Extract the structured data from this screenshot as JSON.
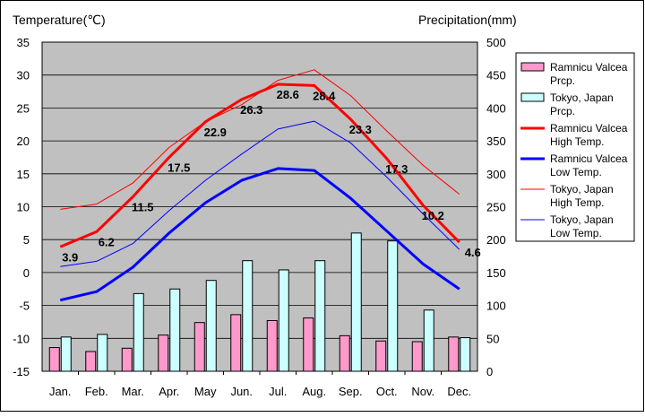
{
  "chart_data": {
    "type": "bar+line",
    "categories": [
      "Jan.",
      "Feb.",
      "Mar.",
      "Apr.",
      "May",
      "Jun.",
      "Jul.",
      "Aug.",
      "Sep.",
      "Oct.",
      "Nov.",
      "Dec."
    ],
    "left_axis": {
      "title": "Temperature(℃)",
      "min": -15,
      "max": 35,
      "step": 5
    },
    "right_axis": {
      "title": "Precipitation(mm)",
      "min": 0,
      "max": 500,
      "step": 50
    },
    "precipitation_series": [
      {
        "name": "Ramnicu Valcea Prcp.",
        "color": "#ff99cc",
        "values": [
          36,
          30,
          35,
          55,
          74,
          86,
          77,
          81,
          54,
          46,
          45,
          52
        ]
      },
      {
        "name": "Tokyo, Japan Prcp.",
        "color": "#ccffff",
        "values": [
          52,
          56,
          118,
          125,
          138,
          168,
          154,
          168,
          210,
          198,
          93,
          51
        ]
      }
    ],
    "temperature_series": [
      {
        "name": "Ramnicu Valcea High Temp.",
        "color": "#ff0000",
        "width": "thick",
        "values": [
          3.9,
          6.2,
          11.5,
          17.5,
          22.9,
          26.3,
          28.6,
          28.4,
          23.3,
          17.3,
          10.2,
          4.6
        ],
        "labels": [
          "3.9",
          "6.2",
          "11.5",
          "17.5",
          "22.9",
          "26.3",
          "28.6",
          "28.4",
          "23.3",
          "17.3",
          "10.2",
          "4.6"
        ]
      },
      {
        "name": "Ramnicu Valcea Low Temp.",
        "color": "#0000ff",
        "width": "thick",
        "values": [
          -4.2,
          -2.9,
          0.8,
          6.0,
          10.6,
          14.0,
          15.8,
          15.5,
          11.3,
          6.3,
          1.3,
          -2.5
        ]
      },
      {
        "name": "Tokyo, Japan High Temp.",
        "color": "#ff0000",
        "width": "thin",
        "values": [
          9.6,
          10.4,
          13.6,
          19.0,
          22.9,
          25.5,
          29.2,
          30.8,
          26.9,
          21.5,
          16.3,
          11.9
        ]
      },
      {
        "name": "Tokyo, Japan Low Temp.",
        "color": "#0000ff",
        "width": "thin",
        "values": [
          0.9,
          1.7,
          4.4,
          9.4,
          14.0,
          18.0,
          21.8,
          23.0,
          19.7,
          14.5,
          8.9,
          3.5
        ]
      }
    ],
    "legend": [
      {
        "line1": "Ramnicu Valcea",
        "line2": "Prcp."
      },
      {
        "line1": "Tokyo, Japan",
        "line2": "Prcp."
      },
      {
        "line1": "Ramnicu Valcea",
        "line2": "High Temp."
      },
      {
        "line1": "Ramnicu Valcea",
        "line2": "Low Temp."
      },
      {
        "line1": "Tokyo, Japan",
        "line2": "High Temp."
      },
      {
        "line1": "Tokyo, Japan",
        "line2": "Low Temp."
      }
    ],
    "legend_position": "right",
    "grid": true,
    "plot_background": "#c0c0c0"
  }
}
